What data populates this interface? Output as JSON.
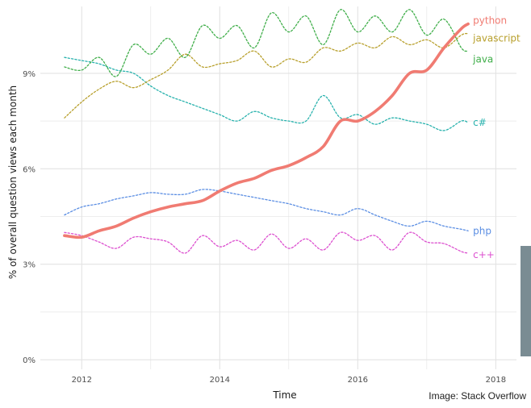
{
  "chart_data": {
    "type": "line",
    "xlabel": "Time",
    "ylabel": "% of overall question views each month",
    "xlim": [
      2011.4,
      2018.3
    ],
    "ylim": [
      -0.3,
      11.1
    ],
    "x_ticks": [
      {
        "value": 2012,
        "label": "2012"
      },
      {
        "value": 2014,
        "label": "2014"
      },
      {
        "value": 2016,
        "label": "2016"
      },
      {
        "value": 2018,
        "label": "2018"
      }
    ],
    "y_ticks": [
      {
        "value": 0,
        "label": "0%"
      },
      {
        "value": 3,
        "label": "3%"
      },
      {
        "value": 6,
        "label": "6%"
      },
      {
        "value": 9,
        "label": "9%"
      }
    ],
    "grid": true,
    "legend": "direct labels at line ends",
    "series": [
      {
        "name": "python",
        "color": "#f07b72",
        "style": "solid",
        "x": [
          2011.75,
          2012.0,
          2012.25,
          2012.5,
          2012.75,
          2013.0,
          2013.25,
          2013.5,
          2013.75,
          2014.0,
          2014.25,
          2014.5,
          2014.75,
          2015.0,
          2015.25,
          2015.5,
          2015.75,
          2016.0,
          2016.25,
          2016.5,
          2016.75,
          2017.0,
          2017.25,
          2017.5,
          2017.6
        ],
        "y": [
          3.9,
          3.85,
          4.05,
          4.2,
          4.45,
          4.65,
          4.8,
          4.9,
          5.0,
          5.3,
          5.55,
          5.7,
          5.95,
          6.1,
          6.35,
          6.7,
          7.5,
          7.5,
          7.8,
          8.3,
          9.0,
          9.1,
          9.8,
          10.4,
          10.55
        ]
      },
      {
        "name": "javascript",
        "color": "#b8a02d",
        "style": "dotted",
        "x": [
          2011.75,
          2012.0,
          2012.25,
          2012.5,
          2012.75,
          2013.0,
          2013.25,
          2013.5,
          2013.75,
          2014.0,
          2014.25,
          2014.5,
          2014.75,
          2015.0,
          2015.25,
          2015.5,
          2015.75,
          2016.0,
          2016.25,
          2016.5,
          2016.75,
          2017.0,
          2017.25,
          2017.5,
          2017.6
        ],
        "y": [
          7.6,
          8.1,
          8.5,
          8.75,
          8.55,
          8.8,
          9.1,
          9.6,
          9.2,
          9.3,
          9.4,
          9.7,
          9.2,
          9.45,
          9.35,
          9.8,
          9.7,
          9.95,
          9.8,
          10.15,
          9.9,
          10.05,
          9.8,
          10.2,
          10.25
        ]
      },
      {
        "name": "java",
        "color": "#3fae49",
        "style": "dotted",
        "x": [
          2011.75,
          2012.0,
          2012.25,
          2012.5,
          2012.75,
          2013.0,
          2013.25,
          2013.5,
          2013.75,
          2014.0,
          2014.25,
          2014.5,
          2014.75,
          2015.0,
          2015.25,
          2015.5,
          2015.75,
          2016.0,
          2016.25,
          2016.5,
          2016.75,
          2017.0,
          2017.25,
          2017.5,
          2017.6
        ],
        "y": [
          9.2,
          9.1,
          9.5,
          8.9,
          9.9,
          9.6,
          10.1,
          9.5,
          10.5,
          10.1,
          10.5,
          9.8,
          10.9,
          10.3,
          10.8,
          9.9,
          11.0,
          10.3,
          10.8,
          10.3,
          11.0,
          10.2,
          10.7,
          9.8,
          9.7
        ]
      },
      {
        "name": "c#",
        "color": "#28b2ad",
        "style": "dotted",
        "x": [
          2011.75,
          2012.0,
          2012.25,
          2012.5,
          2012.75,
          2013.0,
          2013.25,
          2013.5,
          2013.75,
          2014.0,
          2014.25,
          2014.5,
          2014.75,
          2015.0,
          2015.25,
          2015.5,
          2015.75,
          2016.0,
          2016.25,
          2016.5,
          2016.75,
          2017.0,
          2017.25,
          2017.5,
          2017.6
        ],
        "y": [
          9.5,
          9.4,
          9.3,
          9.1,
          9.0,
          8.6,
          8.3,
          8.1,
          7.9,
          7.7,
          7.5,
          7.8,
          7.6,
          7.5,
          7.5,
          8.3,
          7.6,
          7.7,
          7.4,
          7.6,
          7.5,
          7.4,
          7.2,
          7.5,
          7.45
        ]
      },
      {
        "name": "php",
        "color": "#5b8ee3",
        "style": "dotted",
        "x": [
          2011.75,
          2012.0,
          2012.25,
          2012.5,
          2012.75,
          2013.0,
          2013.25,
          2013.5,
          2013.75,
          2014.0,
          2014.25,
          2014.5,
          2014.75,
          2015.0,
          2015.25,
          2015.5,
          2015.75,
          2016.0,
          2016.25,
          2016.5,
          2016.75,
          2017.0,
          2017.25,
          2017.5,
          2017.6
        ],
        "y": [
          4.55,
          4.8,
          4.9,
          5.05,
          5.15,
          5.25,
          5.2,
          5.2,
          5.35,
          5.3,
          5.2,
          5.1,
          5.0,
          4.9,
          4.75,
          4.65,
          4.55,
          4.75,
          4.55,
          4.35,
          4.2,
          4.35,
          4.2,
          4.1,
          4.05
        ]
      },
      {
        "name": "c++",
        "color": "#dc4fcf",
        "style": "dotted",
        "x": [
          2011.75,
          2012.0,
          2012.25,
          2012.5,
          2012.75,
          2013.0,
          2013.25,
          2013.5,
          2013.75,
          2014.0,
          2014.25,
          2014.5,
          2014.75,
          2015.0,
          2015.25,
          2015.5,
          2015.75,
          2016.0,
          2016.25,
          2016.5,
          2016.75,
          2017.0,
          2017.25,
          2017.5,
          2017.6
        ],
        "y": [
          4.0,
          3.9,
          3.7,
          3.5,
          3.85,
          3.8,
          3.7,
          3.35,
          3.9,
          3.55,
          3.75,
          3.45,
          3.95,
          3.5,
          3.8,
          3.45,
          4.0,
          3.75,
          3.9,
          3.45,
          4.0,
          3.7,
          3.65,
          3.4,
          3.35
        ]
      }
    ]
  },
  "credit": "Image: Stack Overflow",
  "colors": {
    "gridline": "#e3e3e3",
    "sidebar_bar": "#7a8c93"
  }
}
